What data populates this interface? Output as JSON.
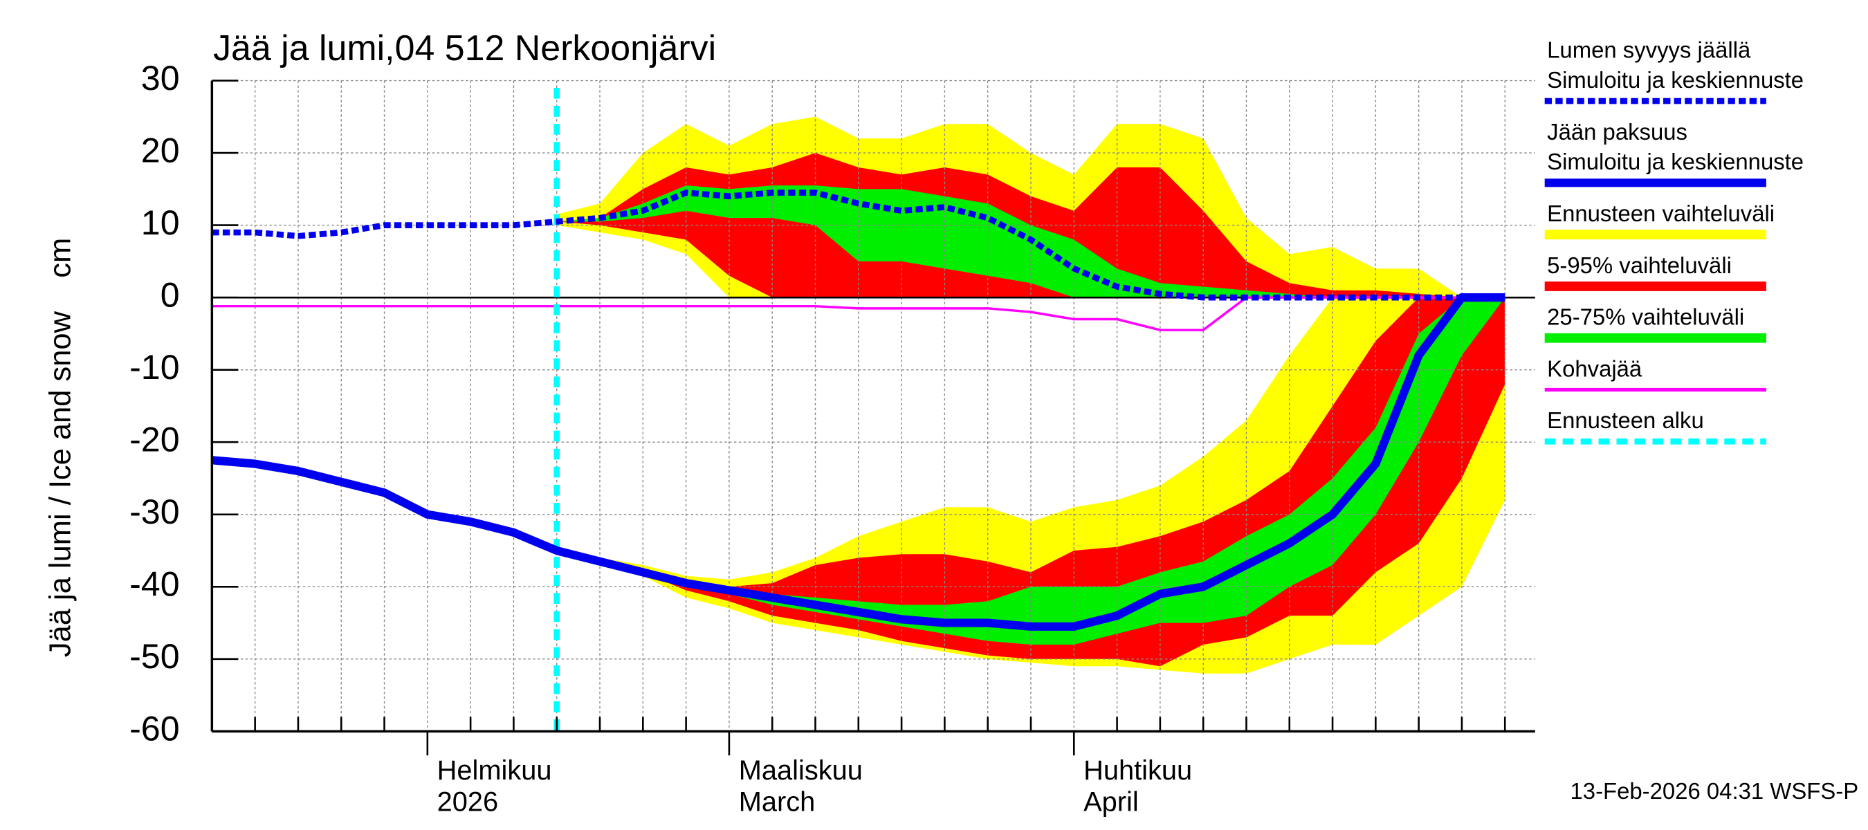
{
  "chart_data": {
    "type": "line",
    "title": "Jää ja lumi,04 512 Nerkoonjärvi",
    "ylabel": "Jää ja lumi / Ice and snow    cm",
    "footer": "13-Feb-2026 04:31 WSFS-P",
    "categories": [
      null,
      null,
      null,
      null,
      null,
      "Helmikuu",
      null,
      null,
      null,
      null,
      null,
      null,
      "Maaliskuu",
      null,
      null,
      null,
      null,
      null,
      null,
      null,
      "Huhtikuu",
      null,
      null,
      null,
      null,
      null,
      null,
      null,
      null,
      null,
      null
    ],
    "categories_sub": [
      null,
      null,
      null,
      null,
      null,
      "2026",
      null,
      null,
      null,
      null,
      null,
      null,
      "March",
      null,
      null,
      null,
      null,
      null,
      null,
      null,
      "April",
      null,
      null,
      null,
      null,
      null,
      null,
      null,
      null,
      null,
      null
    ],
    "ylim": [
      -60,
      30
    ],
    "yticks": [
      -60,
      -50,
      -40,
      -30,
      -20,
      -10,
      0,
      10,
      20,
      30
    ],
    "grid": true,
    "series": [
      {
        "name": [
          "Lumen syvyys jäällä",
          "Simuloitu ja keskiennuste"
        ],
        "color": "#0000ee",
        "style": "dashed",
        "values": [
          9,
          9,
          8.5,
          9,
          10,
          10,
          10,
          10,
          10.5,
          11,
          12,
          14.5,
          14,
          14.5,
          14.5,
          13,
          12,
          12.5,
          11,
          8,
          4,
          1.5,
          0.5,
          0,
          0,
          0,
          0,
          0,
          0,
          0,
          0
        ]
      },
      {
        "name": [
          "Jään paksuus",
          "Simuloitu ja keskiennuste"
        ],
        "color": "#0000ee",
        "style": "solid",
        "values": [
          -22.5,
          -23,
          -24,
          -25.5,
          -27,
          -30,
          -31,
          -32.5,
          -35,
          -36.5,
          -38,
          -39.5,
          -40.5,
          -41.5,
          -42.5,
          -43.5,
          -44.5,
          -45,
          -45,
          -45.5,
          -45.5,
          -44,
          -41,
          -40,
          -37,
          -34,
          -30,
          -23,
          -8,
          0,
          0
        ]
      },
      {
        "name": [
          "Ennusteen vaihteluväli"
        ],
        "color": "#ffff00",
        "style": "band",
        "snow_low": [
          null,
          null,
          null,
          null,
          null,
          null,
          null,
          null,
          10,
          9,
          8,
          6,
          0,
          0,
          0,
          0,
          0,
          0,
          0,
          0,
          0,
          0,
          0,
          0,
          0,
          0,
          0,
          0,
          0,
          0,
          null
        ],
        "snow_high": [
          null,
          null,
          null,
          null,
          null,
          null,
          null,
          null,
          11.5,
          13,
          20,
          24,
          21,
          24,
          25,
          22,
          22,
          24,
          24,
          20,
          17,
          24,
          24,
          22,
          11,
          6,
          7,
          4,
          4,
          0,
          null
        ],
        "ice_low": [
          null,
          null,
          null,
          null,
          null,
          null,
          null,
          null,
          -35,
          -36.5,
          -38.5,
          -41.5,
          -43,
          -45,
          -46,
          -47,
          -48,
          -49,
          -50,
          -50.5,
          -51,
          -51,
          -51.5,
          -52,
          -52,
          -50,
          -48,
          -48,
          -44,
          -40,
          -28
        ],
        "ice_high": [
          null,
          null,
          null,
          null,
          null,
          null,
          null,
          null,
          -35,
          -36,
          -37,
          -38.5,
          -39,
          -38,
          -36,
          -33,
          -31,
          -29,
          -29,
          -31,
          -29,
          -28,
          -26,
          -22,
          -17,
          -8,
          0,
          0,
          0,
          0,
          0
        ]
      },
      {
        "name": [
          "5-95% vaihteluväli"
        ],
        "color": "#ff0000",
        "style": "band",
        "snow_low": [
          null,
          null,
          null,
          null,
          null,
          null,
          null,
          null,
          10.5,
          10,
          9,
          8,
          3,
          0,
          0,
          0,
          0,
          0,
          0,
          0,
          0,
          0,
          0,
          0,
          0,
          0,
          0,
          0,
          0,
          0,
          null
        ],
        "snow_high": [
          null,
          null,
          null,
          null,
          null,
          null,
          null,
          null,
          10.5,
          11,
          15,
          18,
          17,
          18,
          20,
          18,
          17,
          18,
          17,
          14,
          12,
          18,
          18,
          12,
          5,
          2,
          1,
          1,
          0.5,
          0,
          null
        ],
        "ice_low": [
          null,
          null,
          null,
          null,
          null,
          null,
          null,
          null,
          -35,
          -36.5,
          -38,
          -40.5,
          -42,
          -44,
          -45,
          -46,
          -47.5,
          -48.5,
          -49.5,
          -50,
          -50,
          -50,
          -51,
          -48,
          -47,
          -44,
          -44,
          -38,
          -34,
          -25,
          -12
        ],
        "ice_high": [
          null,
          null,
          null,
          null,
          null,
          null,
          null,
          null,
          -35,
          -36.5,
          -37.5,
          -39.5,
          -40,
          -39.5,
          -37,
          -36,
          -35.5,
          -35.5,
          -36.5,
          -38,
          -35,
          -34.5,
          -33,
          -31,
          -28,
          -24,
          -15,
          -6,
          0,
          0,
          0
        ]
      },
      {
        "name": [
          "25-75% vaihteluväli"
        ],
        "color": "#00ee00",
        "style": "band",
        "snow_low": [
          null,
          null,
          null,
          null,
          null,
          null,
          null,
          null,
          10.5,
          10.5,
          11,
          12,
          11,
          11,
          10,
          5,
          5,
          4,
          3,
          2,
          0,
          0,
          0,
          0,
          0,
          0,
          0,
          0,
          0,
          0,
          null
        ],
        "snow_high": [
          null,
          null,
          null,
          null,
          null,
          null,
          null,
          null,
          10.5,
          11,
          13,
          15.5,
          15,
          15.5,
          15.5,
          15,
          15,
          14,
          13,
          10,
          8,
          4,
          2,
          1.5,
          1,
          0.5,
          0,
          0,
          0,
          0,
          null
        ],
        "ice_low": [
          null,
          null,
          null,
          null,
          null,
          null,
          null,
          null,
          -35,
          -36.5,
          -38,
          -39.5,
          -41,
          -42.5,
          -43.5,
          -44.5,
          -45.5,
          -46.5,
          -47.5,
          -48,
          -48,
          -46.5,
          -45,
          -45,
          -44,
          -40,
          -37,
          -30,
          -20,
          -8,
          0
        ],
        "ice_high": [
          null,
          null,
          null,
          null,
          null,
          null,
          null,
          null,
          -35,
          -36.5,
          -38,
          -39.5,
          -40.5,
          -41,
          -41.5,
          -42,
          -42.5,
          -42.5,
          -42,
          -40,
          -40,
          -40,
          -38,
          -36.5,
          -33,
          -30,
          -25,
          -18,
          -5,
          0,
          0
        ]
      },
      {
        "name": [
          "Kohvajää"
        ],
        "color": "#ff00ff",
        "style": "line",
        "values": [
          -1.2,
          -1.2,
          -1.2,
          -1.2,
          -1.2,
          -1.2,
          -1.2,
          -1.2,
          -1.2,
          -1.2,
          -1.2,
          -1.2,
          -1.2,
          -1.2,
          -1.2,
          -1.5,
          -1.5,
          -1.5,
          -1.5,
          -2,
          -3,
          -3,
          -4.5,
          -4.5,
          0,
          0,
          0,
          0,
          0,
          0,
          0
        ]
      },
      {
        "name": [
          "Ennusteen alku"
        ],
        "color": "#00ffff",
        "style": "vline",
        "category_index": 8
      }
    ]
  }
}
